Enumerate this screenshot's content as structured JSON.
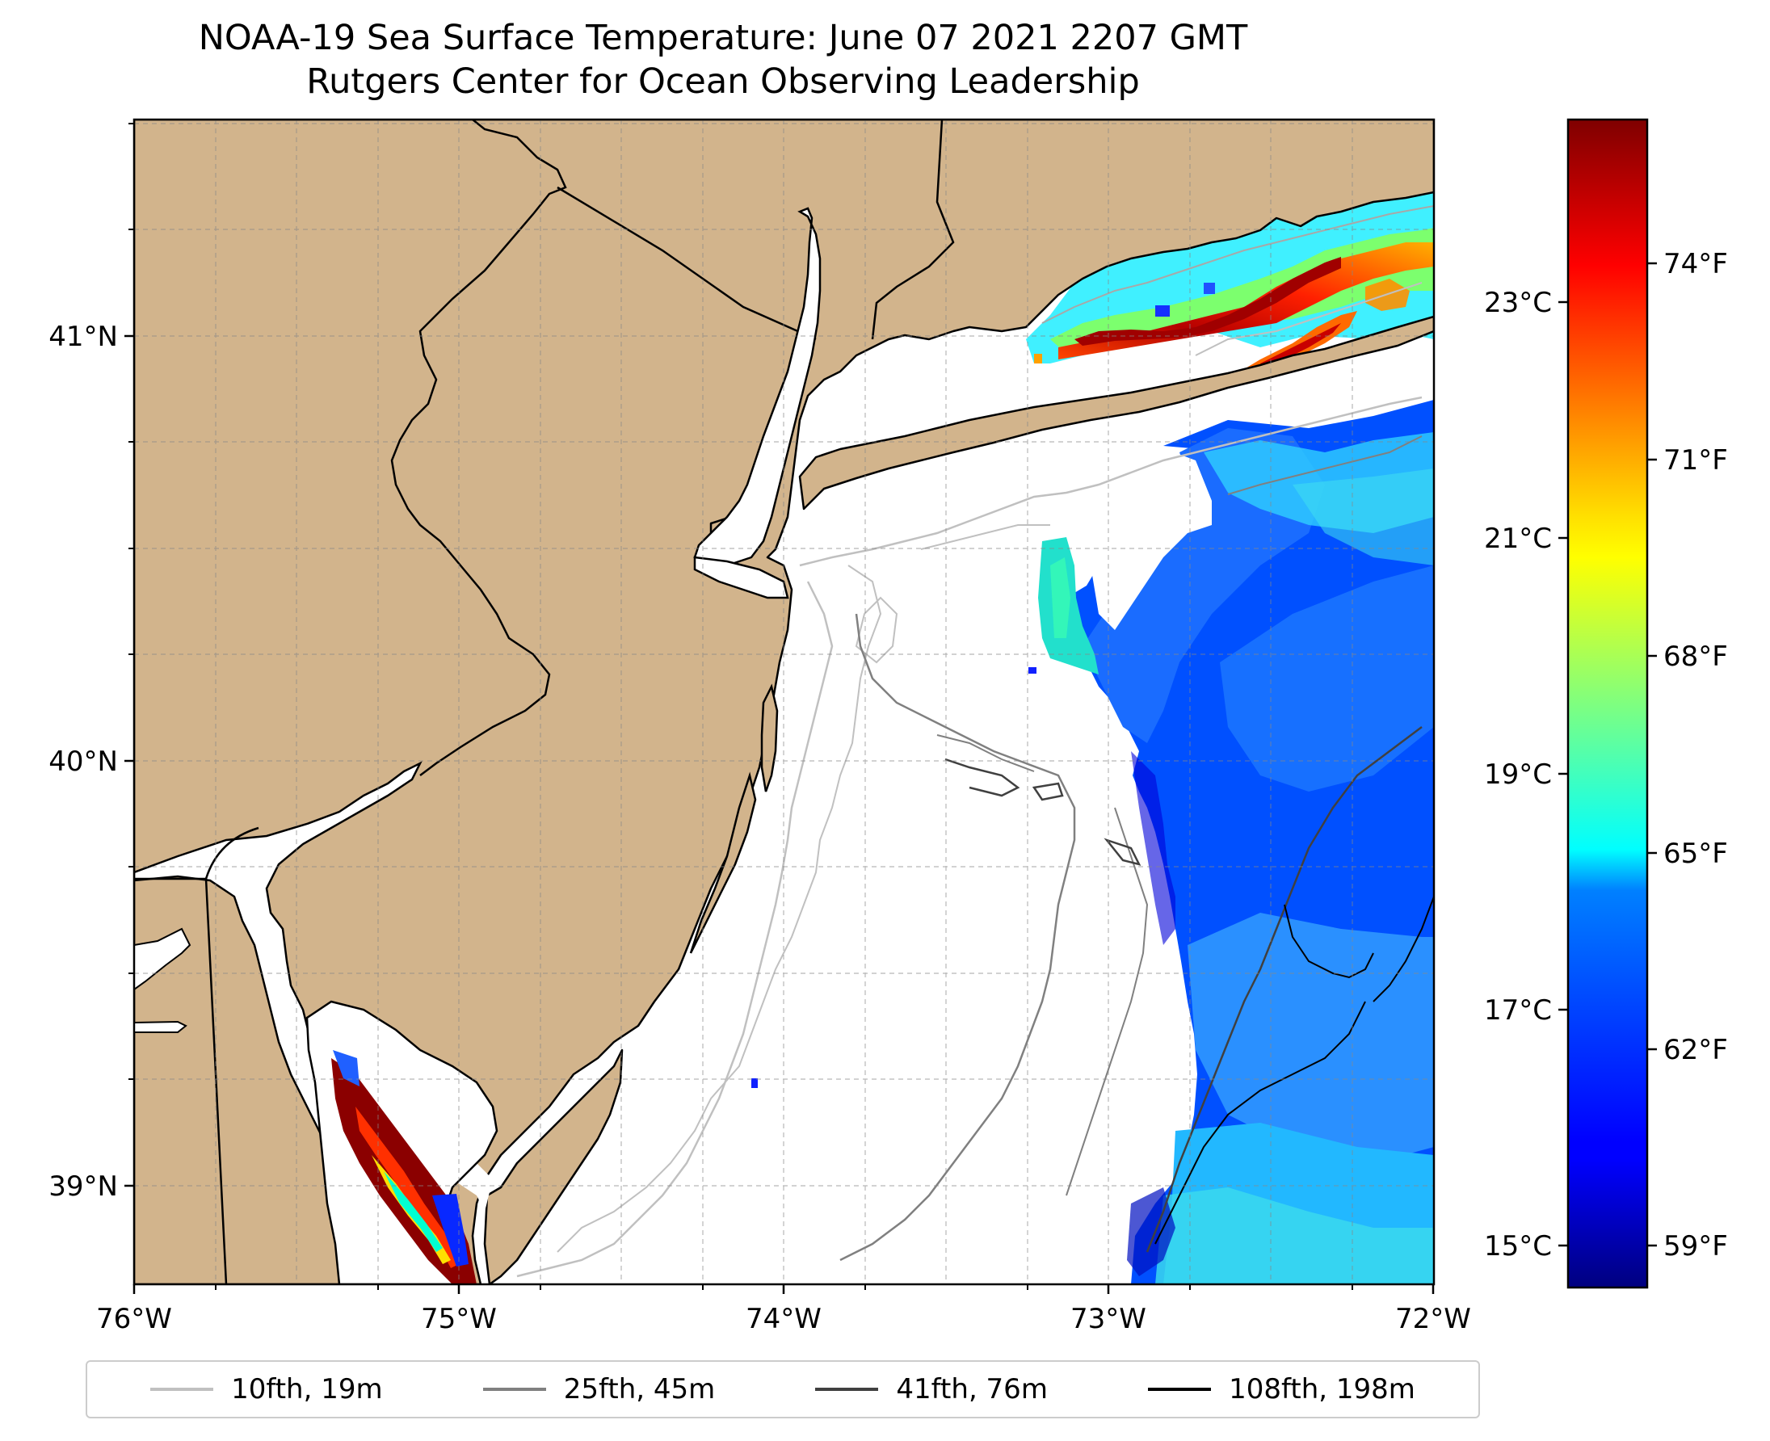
{
  "title": "NOAA-19 Sea Surface Temperature: June 07 2021 2207 GMT",
  "subtitle": "Rutgers Center for Ocean Observing Leadership",
  "map": {
    "lon_range": [
      -76,
      -72
    ],
    "lat_range": [
      38.68,
      41.52
    ],
    "lon_ticks": [
      {
        "value": -76,
        "label": "76°W"
      },
      {
        "value": -75,
        "label": "75°W"
      },
      {
        "value": -74,
        "label": "74°W"
      },
      {
        "value": -73,
        "label": "73°W"
      },
      {
        "value": -72,
        "label": "72°W"
      }
    ],
    "lat_ticks": [
      {
        "value": 41,
        "label": "41°N"
      },
      {
        "value": 40,
        "label": "40°N"
      },
      {
        "value": 39,
        "label": "39°N"
      }
    ],
    "gridlines": "dashed",
    "land_color": "#d2b48c",
    "ocean_color": "#ffffff"
  },
  "colorbar": {
    "colormap": "jet",
    "celsius_range": [
      14.6,
      24.5
    ],
    "celsius_ticks": [
      {
        "value": 15,
        "label": "15°C"
      },
      {
        "value": 17,
        "label": "17°C"
      },
      {
        "value": 19,
        "label": "19°C"
      },
      {
        "value": 21,
        "label": "21°C"
      },
      {
        "value": 23,
        "label": "23°C"
      }
    ],
    "fahrenheit_ticks": [
      {
        "value": 59,
        "label": "59°F"
      },
      {
        "value": 62,
        "label": "62°F"
      },
      {
        "value": 65,
        "label": "65°F"
      },
      {
        "value": 68,
        "label": "68°F"
      },
      {
        "value": 71,
        "label": "71°F"
      },
      {
        "value": 74,
        "label": "74°F"
      }
    ]
  },
  "legend": {
    "items": [
      {
        "label": "10fth, 19m",
        "color": "#c0c0c0"
      },
      {
        "label": "25fth, 45m",
        "color": "#808080"
      },
      {
        "label": "41fth, 76m",
        "color": "#404040"
      },
      {
        "label": "108fth, 198m",
        "color": "#000000"
      }
    ]
  }
}
